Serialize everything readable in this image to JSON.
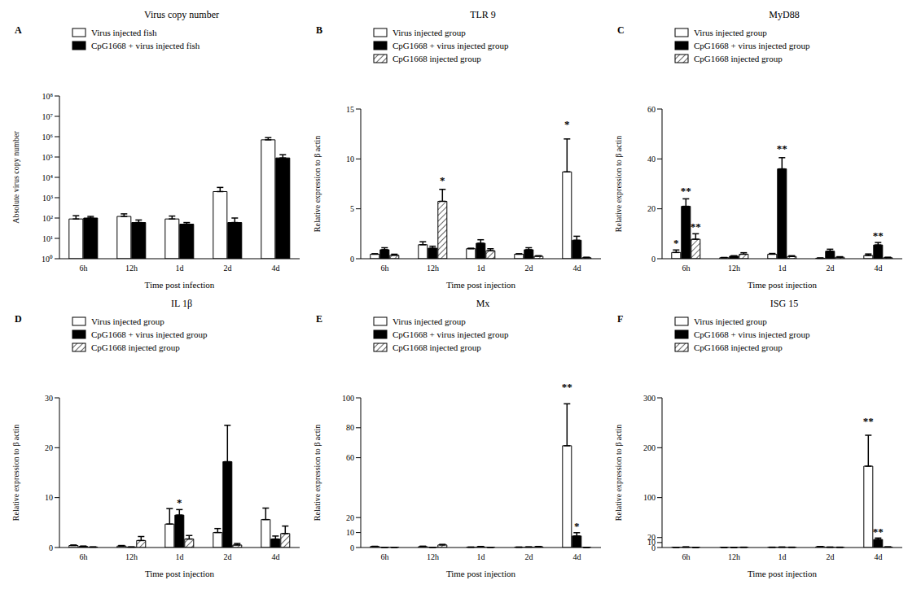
{
  "chart_data": [
    {
      "type": "bar",
      "label": "A",
      "title": "Virus copy number",
      "x_label": "Time post infection",
      "y_label": "Absolute virus copy number",
      "log": "y",
      "legend": "top-left",
      "categories": [
        "6h",
        "12h",
        "1d",
        "2d",
        "4d"
      ],
      "ylim": [
        1,
        100000000
      ],
      "yticks": [
        {
          "value": 1,
          "label": "10⁰"
        },
        {
          "value": 10,
          "label": "10¹"
        },
        {
          "value": 100,
          "label": "10²"
        },
        {
          "value": 1000,
          "label": "10³"
        },
        {
          "value": 10000,
          "label": "10⁴"
        },
        {
          "value": 100000,
          "label": "10⁵"
        },
        {
          "value": 1000000,
          "label": "10⁶"
        },
        {
          "value": 10000000,
          "label": "10⁷"
        },
        {
          "value": 100000000,
          "label": "10⁸"
        }
      ],
      "series": [
        {
          "name": "Virus injected fish",
          "color": "#ffffff",
          "values": [
            90,
            120,
            90,
            2000,
            700000
          ],
          "errors": [
            40,
            40,
            35,
            1200,
            200000
          ]
        },
        {
          "name": "CpG1668 + virus injected fish",
          "color": "#000000",
          "values": [
            100,
            60,
            50,
            60,
            90000
          ],
          "errors": [
            20,
            20,
            10,
            40,
            40000
          ]
        }
      ]
    },
    {
      "type": "bar",
      "label": "B",
      "title": "TLR 9",
      "x_label": "Time post injection",
      "y_label": "Relative expression to β actin",
      "legend": "top-left",
      "categories": [
        "6h",
        "12h",
        "1d",
        "2d",
        "4d"
      ],
      "ylim": [
        0,
        15
      ],
      "yticks": [
        0,
        5,
        10,
        15
      ],
      "series": [
        {
          "name": "Virus injected group",
          "color": "#ffffff",
          "values": [
            0.45,
            1.4,
            1.0,
            0.45,
            8.7
          ],
          "errors": [
            0.05,
            0.3,
            0.05,
            0.05,
            3.3
          ],
          "significance": [
            null,
            null,
            null,
            null,
            "*"
          ]
        },
        {
          "name": "CpG1668 + virus injected group",
          "color": "#000000",
          "values": [
            0.9,
            1.05,
            1.55,
            0.9,
            1.85
          ],
          "errors": [
            0.2,
            0.2,
            0.35,
            0.2,
            0.4
          ],
          "significance": [
            null,
            null,
            null,
            null,
            null
          ]
        },
        {
          "name": "CpG1668 injected group",
          "color": "#ffffff",
          "marker": "hatch",
          "values": [
            0.35,
            5.75,
            0.8,
            0.25,
            0.1
          ],
          "errors": [
            0.1,
            1.2,
            0.2,
            0.05,
            0.05
          ],
          "significance": [
            null,
            "*",
            null,
            null,
            null
          ]
        }
      ]
    },
    {
      "type": "bar",
      "label": "C",
      "title": "MyD88",
      "x_label": "Time post injection",
      "y_label": "Relative expression to β actin",
      "legend": "top-left",
      "categories": [
        "6h",
        "12h",
        "1d",
        "2d",
        "4d"
      ],
      "ylim": [
        0,
        60
      ],
      "yticks": [
        0,
        20,
        40,
        60
      ],
      "series": [
        {
          "name": "Virus injected group",
          "color": "#ffffff",
          "values": [
            2.5,
            0.4,
            1.8,
            0.2,
            1.3
          ],
          "errors": [
            1.0,
            0.1,
            0.3,
            0.1,
            0.6
          ],
          "significance": [
            "*",
            null,
            null,
            null,
            null
          ]
        },
        {
          "name": "CpG1668 + virus injected group",
          "color": "#000000",
          "values": [
            21,
            1.0,
            36,
            3.0,
            5.5
          ],
          "errors": [
            3,
            0.2,
            4.5,
            0.8,
            1
          ],
          "significance": [
            "**",
            null,
            "**",
            null,
            "**"
          ]
        },
        {
          "name": "CpG1668 injected group",
          "color": "#ffffff",
          "marker": "hatch",
          "values": [
            7.8,
            1.8,
            0.9,
            0.6,
            0.4
          ],
          "errors": [
            2.2,
            0.6,
            0.3,
            0.2,
            0.2
          ],
          "significance": [
            "**",
            null,
            null,
            null,
            null
          ]
        }
      ]
    },
    {
      "type": "bar",
      "label": "D",
      "title": "IL 1β",
      "x_label": "Time post injection",
      "y_label": "Relative expression to β actin",
      "legend": "top-left",
      "categories": [
        "6h",
        "12h",
        "1d",
        "2d",
        "4d"
      ],
      "ylim": [
        0,
        30
      ],
      "yticks": [
        0,
        10,
        20,
        30
      ],
      "series": [
        {
          "name": "Virus injected group",
          "color": "#ffffff",
          "values": [
            0.4,
            0.3,
            4.7,
            3.0,
            5.6
          ],
          "errors": [
            0.1,
            0.1,
            3.1,
            0.8,
            2.3
          ],
          "significance": [
            null,
            null,
            null,
            null,
            null
          ]
        },
        {
          "name": "CpG1668 + virus injected group",
          "color": "#000000",
          "values": [
            0.2,
            0.1,
            6.5,
            17.2,
            1.7
          ],
          "errors": [
            0.1,
            0,
            1.1,
            7.3,
            0.6
          ],
          "significance": [
            null,
            null,
            "*",
            null,
            null
          ]
        },
        {
          "name": "CpG1668 injected group",
          "color": "#ffffff",
          "marker": "hatch",
          "values": [
            0.1,
            1.4,
            1.7,
            0.5,
            2.8
          ],
          "errors": [
            0,
            0.8,
            0.7,
            0.3,
            1.5
          ],
          "significance": [
            null,
            null,
            null,
            null,
            null
          ]
        }
      ]
    },
    {
      "type": "bar",
      "label": "E",
      "title": "Mx",
      "x_label": "Time post injection",
      "y_label": "Relative expression to β actin",
      "legend": "top-left",
      "categories": [
        "6h",
        "12h",
        "1d",
        "2d",
        "4d"
      ],
      "ylim": [
        0,
        100
      ],
      "yticks": [
        0,
        10,
        20,
        60,
        80,
        100
      ],
      "series": [
        {
          "name": "Virus injected group",
          "color": "#ffffff",
          "values": [
            0.7,
            0.6,
            0.2,
            0.2,
            68
          ],
          "errors": [
            0.1,
            0.3,
            0.1,
            0.1,
            28
          ],
          "significance": [
            null,
            null,
            null,
            null,
            "**"
          ]
        },
        {
          "name": "CpG1668 + virus injected group",
          "color": "#000000",
          "values": [
            0.1,
            0.1,
            0.4,
            0.3,
            7.7
          ],
          "errors": [
            0.05,
            0.05,
            0.3,
            0.1,
            2.2
          ],
          "significance": [
            null,
            null,
            null,
            null,
            "*"
          ]
        },
        {
          "name": "CpG1668 injected group",
          "color": "#ffffff",
          "marker": "hatch",
          "values": [
            0.1,
            1.7,
            0.1,
            0.5,
            0.05
          ],
          "errors": [
            0.05,
            0.4,
            0.05,
            0.2,
            0.02
          ],
          "significance": [
            null,
            null,
            null,
            null,
            null
          ]
        }
      ]
    },
    {
      "type": "bar",
      "label": "F",
      "title": "ISG 15",
      "x_label": "Time post injection",
      "y_label": "Relative expression to β actin",
      "legend": "top-left",
      "categories": [
        "6h",
        "12h",
        "1d",
        "2d",
        "4d"
      ],
      "ylim": [
        0,
        300
      ],
      "yticks": [
        0,
        10,
        20,
        100,
        200,
        300
      ],
      "series": [
        {
          "name": "Virus injected group",
          "color": "#ffffff",
          "values": [
            0.3,
            0.1,
            0.5,
            1.6,
            163
          ],
          "errors": [
            0.1,
            0.05,
            0.1,
            0.2,
            62
          ],
          "significance": [
            null,
            null,
            null,
            null,
            "**"
          ]
        },
        {
          "name": "CpG1668 + virus injected group",
          "color": "#000000",
          "values": [
            0.7,
            0.05,
            0.6,
            0.7,
            16
          ],
          "errors": [
            0.6,
            0.02,
            0.4,
            0.1,
            3
          ],
          "significance": [
            null,
            null,
            null,
            null,
            "**"
          ]
        },
        {
          "name": "CpG1668 injected group",
          "color": "#ffffff",
          "marker": "hatch",
          "values": [
            0.1,
            0.5,
            0.5,
            0.5,
            1.0
          ],
          "errors": [
            0.05,
            0.1,
            0.1,
            0.1,
            0.2
          ],
          "significance": [
            null,
            null,
            null,
            null,
            null
          ]
        }
      ]
    }
  ]
}
